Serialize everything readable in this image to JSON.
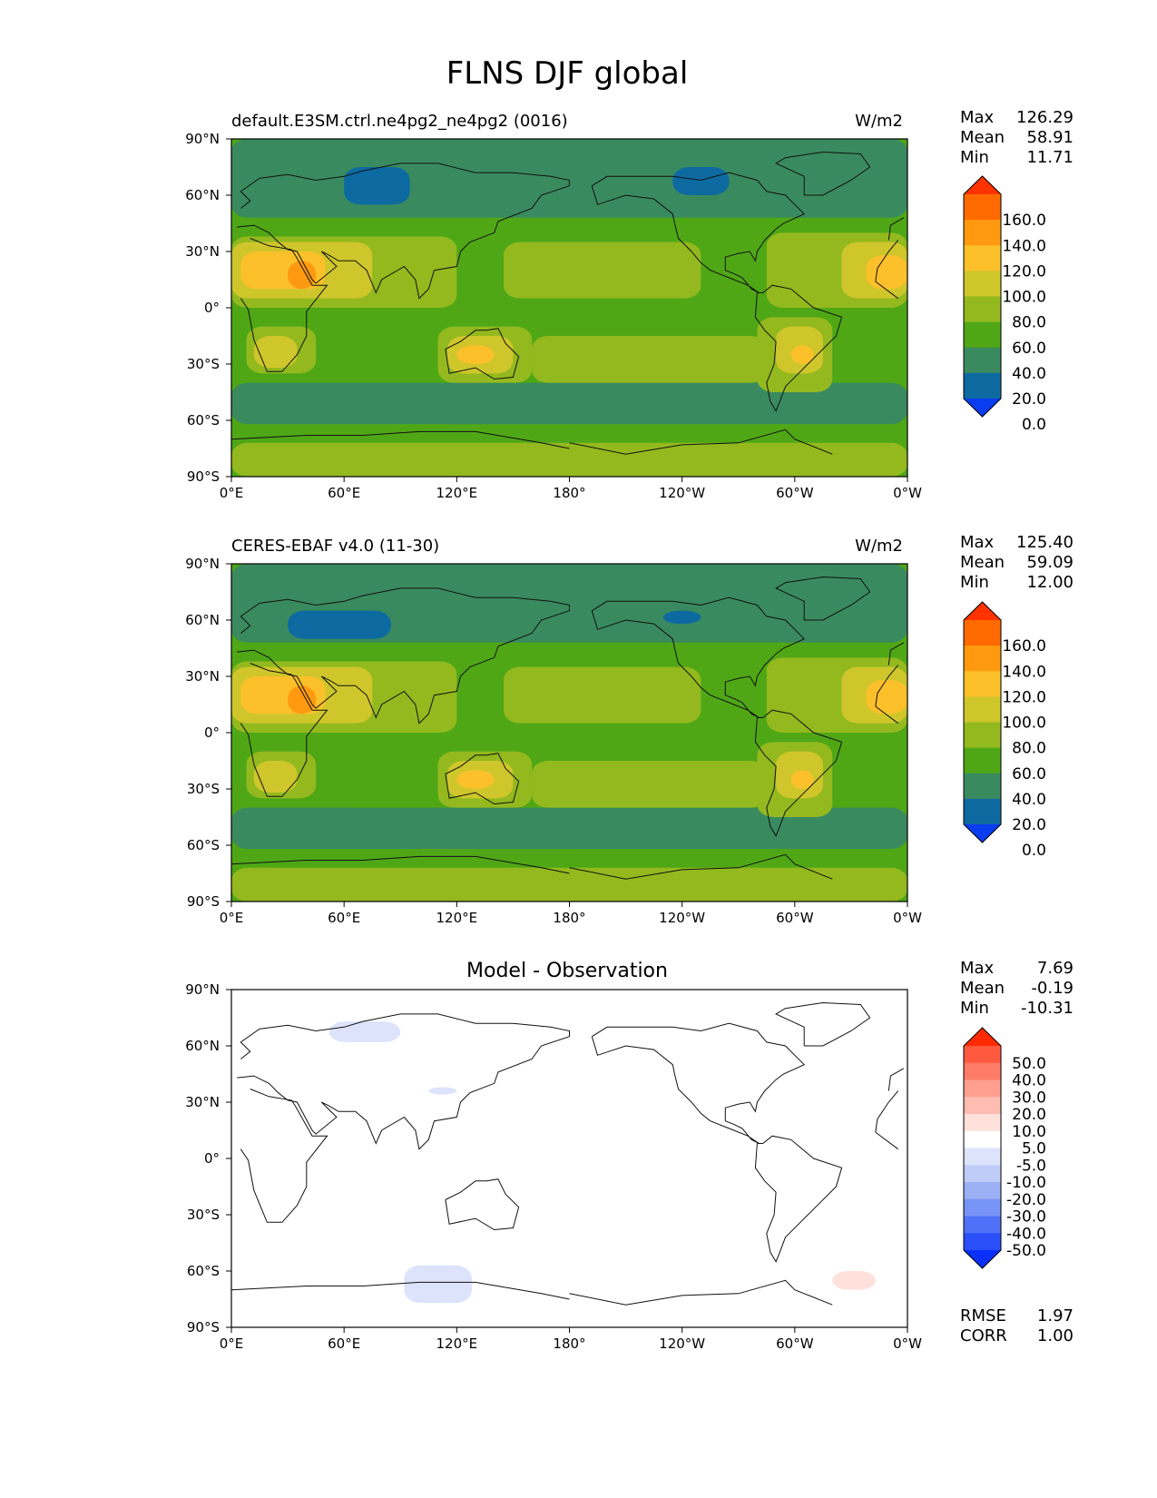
{
  "title": "FLNS DJF global",
  "panels": [
    {
      "id": "model",
      "left_label": "default.E3SM.ctrl.ne4pg2_ne4pg2 (0016)",
      "center_title": "",
      "units": "W/m2",
      "stats": [
        {
          "label": "Max",
          "value": "126.29"
        },
        {
          "label": "Mean",
          "value": "58.91"
        },
        {
          "label": "Min",
          "value": "11.71"
        }
      ]
    },
    {
      "id": "obs",
      "left_label": "CERES-EBAF v4.0 (11-30)",
      "center_title": "",
      "units": "W/m2",
      "stats": [
        {
          "label": "Max",
          "value": "125.40"
        },
        {
          "label": "Mean",
          "value": "59.09"
        },
        {
          "label": "Min",
          "value": "12.00"
        }
      ]
    },
    {
      "id": "diff",
      "left_label": "",
      "center_title": "Model - Observation",
      "units": "",
      "stats": [
        {
          "label": "Max",
          "value": "7.69"
        },
        {
          "label": "Mean",
          "value": "-0.19"
        },
        {
          "label": "Min",
          "value": "-10.31"
        }
      ],
      "extra_stats": [
        {
          "label": "RMSE",
          "value": "1.97"
        },
        {
          "label": "CORR",
          "value": "1.00"
        }
      ]
    }
  ],
  "axis": {
    "xticks": [
      "0°E",
      "60°E",
      "120°E",
      "180°",
      "120°W",
      "60°W",
      "0°W"
    ],
    "yticks": [
      "90°N",
      "60°N",
      "30°N",
      "0°",
      "30°S",
      "60°S",
      "90°S"
    ]
  },
  "colorbars": {
    "field": {
      "labels": [
        "160.0",
        "140.0",
        "120.0",
        "100.0",
        "80.0",
        "60.0",
        "40.0",
        "20.0",
        "0.0"
      ],
      "colors": [
        "#ff3300",
        "#ff6a00",
        "#ff9a10",
        "#fbc02a",
        "#cfc62c",
        "#93b91e",
        "#4fa716",
        "#3a8a5f",
        "#0d6aa0",
        "#0a3cf0"
      ]
    },
    "diff": {
      "labels": [
        "50.0",
        "40.0",
        "30.0",
        "20.0",
        "10.0",
        "5.0",
        "-5.0",
        "-10.0",
        "-20.0",
        "-30.0",
        "-40.0",
        "-50.0"
      ],
      "colors": [
        "#ff2a00",
        "#ff5a40",
        "#ff7d68",
        "#ff9f90",
        "#ffbcb0",
        "#ffe0da",
        "#ffffff",
        "#dde3fb",
        "#c0ccf8",
        "#9cb0f6",
        "#7893f6",
        "#5070f7",
        "#2a4ff8",
        "#0a30fa"
      ]
    }
  },
  "chart_data": [
    {
      "type": "heatmap",
      "title": "default.E3SM.ctrl.ne4pg2_ne4pg2 (0016)",
      "units": "W/m2",
      "xlim": [
        0,
        360
      ],
      "ylim": [
        -90,
        90
      ],
      "levels": [
        0,
        20,
        40,
        60,
        80,
        100,
        120,
        140,
        160
      ],
      "stats": {
        "max": 126.29,
        "mean": 58.91,
        "min": 11.71
      },
      "background": "#4fa716",
      "regions": [
        {
          "lon": [
            0,
            360
          ],
          "lat": [
            -90,
            -72
          ],
          "color": "#93b91e"
        },
        {
          "lon": [
            0,
            360
          ],
          "lat": [
            -62,
            -40
          ],
          "color": "#3a8a5f"
        },
        {
          "lon": [
            110,
            190
          ],
          "lat": [
            -62,
            -45
          ],
          "color": "#3a8a5f"
        },
        {
          "lon": [
            0,
            360
          ],
          "lat": [
            48,
            90
          ],
          "color": "#3a8a5f"
        },
        {
          "lon": [
            60,
            95
          ],
          "lat": [
            55,
            75
          ],
          "color": "#0d6aa0"
        },
        {
          "lon": [
            235,
            265
          ],
          "lat": [
            60,
            75
          ],
          "color": "#0d6aa0"
        },
        {
          "lon": [
            0,
            120
          ],
          "lat": [
            0,
            38
          ],
          "color": "#93b91e"
        },
        {
          "lon": [
            0,
            75
          ],
          "lat": [
            5,
            35
          ],
          "color": "#cfc62c"
        },
        {
          "lon": [
            5,
            50
          ],
          "lat": [
            10,
            30
          ],
          "color": "#fbc02a"
        },
        {
          "lon": [
            30,
            45
          ],
          "lat": [
            10,
            25
          ],
          "color": "#ff9a10"
        },
        {
          "lon": [
            145,
            250
          ],
          "lat": [
            5,
            35
          ],
          "color": "#93b91e"
        },
        {
          "lon": [
            285,
            360
          ],
          "lat": [
            0,
            40
          ],
          "color": "#93b91e"
        },
        {
          "lon": [
            325,
            360
          ],
          "lat": [
            5,
            35
          ],
          "color": "#cfc62c"
        },
        {
          "lon": [
            338,
            360
          ],
          "lat": [
            10,
            28
          ],
          "color": "#fbc02a"
        },
        {
          "lon": [
            8,
            45
          ],
          "lat": [
            -35,
            -10
          ],
          "color": "#93b91e"
        },
        {
          "lon": [
            12,
            35
          ],
          "lat": [
            -32,
            -15
          ],
          "color": "#cfc62c"
        },
        {
          "lon": [
            110,
            160
          ],
          "lat": [
            -40,
            -10
          ],
          "color": "#93b91e"
        },
        {
          "lon": [
            115,
            150
          ],
          "lat": [
            -35,
            -15
          ],
          "color": "#cfc62c"
        },
        {
          "lon": [
            120,
            140
          ],
          "lat": [
            -30,
            -20
          ],
          "color": "#fbc02a"
        },
        {
          "lon": [
            280,
            320
          ],
          "lat": [
            -45,
            -5
          ],
          "color": "#93b91e"
        },
        {
          "lon": [
            290,
            315
          ],
          "lat": [
            -35,
            -10
          ],
          "color": "#cfc62c"
        },
        {
          "lon": [
            298,
            310
          ],
          "lat": [
            -30,
            -20
          ],
          "color": "#fbc02a"
        },
        {
          "lon": [
            160,
            285
          ],
          "lat": [
            -40,
            -15
          ],
          "color": "#93b91e"
        }
      ]
    },
    {
      "type": "heatmap",
      "title": "CERES-EBAF v4.0 (11-30)",
      "units": "W/m2",
      "xlim": [
        0,
        360
      ],
      "ylim": [
        -90,
        90
      ],
      "levels": [
        0,
        20,
        40,
        60,
        80,
        100,
        120,
        140,
        160
      ],
      "stats": {
        "max": 125.4,
        "mean": 59.09,
        "min": 12.0
      },
      "background": "#4fa716",
      "regions": [
        {
          "lon": [
            0,
            360
          ],
          "lat": [
            -90,
            -72
          ],
          "color": "#93b91e"
        },
        {
          "lon": [
            0,
            360
          ],
          "lat": [
            -62,
            -40
          ],
          "color": "#3a8a5f"
        },
        {
          "lon": [
            110,
            190
          ],
          "lat": [
            -62,
            -45
          ],
          "color": "#3a8a5f"
        },
        {
          "lon": [
            0,
            360
          ],
          "lat": [
            48,
            90
          ],
          "color": "#3a8a5f"
        },
        {
          "lon": [
            30,
            85
          ],
          "lat": [
            50,
            65
          ],
          "color": "#0d6aa0"
        },
        {
          "lon": [
            230,
            250
          ],
          "lat": [
            58,
            65
          ],
          "color": "#0d6aa0"
        },
        {
          "lon": [
            0,
            120
          ],
          "lat": [
            0,
            38
          ],
          "color": "#93b91e"
        },
        {
          "lon": [
            0,
            75
          ],
          "lat": [
            5,
            35
          ],
          "color": "#cfc62c"
        },
        {
          "lon": [
            5,
            50
          ],
          "lat": [
            10,
            30
          ],
          "color": "#fbc02a"
        },
        {
          "lon": [
            30,
            45
          ],
          "lat": [
            10,
            25
          ],
          "color": "#ff9a10"
        },
        {
          "lon": [
            145,
            250
          ],
          "lat": [
            5,
            35
          ],
          "color": "#93b91e"
        },
        {
          "lon": [
            285,
            360
          ],
          "lat": [
            0,
            40
          ],
          "color": "#93b91e"
        },
        {
          "lon": [
            325,
            360
          ],
          "lat": [
            5,
            35
          ],
          "color": "#cfc62c"
        },
        {
          "lon": [
            338,
            360
          ],
          "lat": [
            10,
            28
          ],
          "color": "#fbc02a"
        },
        {
          "lon": [
            8,
            45
          ],
          "lat": [
            -35,
            -10
          ],
          "color": "#93b91e"
        },
        {
          "lon": [
            12,
            35
          ],
          "lat": [
            -32,
            -15
          ],
          "color": "#cfc62c"
        },
        {
          "lon": [
            110,
            160
          ],
          "lat": [
            -40,
            -10
          ],
          "color": "#93b91e"
        },
        {
          "lon": [
            115,
            150
          ],
          "lat": [
            -35,
            -15
          ],
          "color": "#cfc62c"
        },
        {
          "lon": [
            120,
            140
          ],
          "lat": [
            -30,
            -20
          ],
          "color": "#fbc02a"
        },
        {
          "lon": [
            280,
            320
          ],
          "lat": [
            -45,
            -5
          ],
          "color": "#93b91e"
        },
        {
          "lon": [
            290,
            315
          ],
          "lat": [
            -35,
            -10
          ],
          "color": "#cfc62c"
        },
        {
          "lon": [
            298,
            310
          ],
          "lat": [
            -30,
            -20
          ],
          "color": "#fbc02a"
        },
        {
          "lon": [
            160,
            285
          ],
          "lat": [
            -40,
            -15
          ],
          "color": "#93b91e"
        }
      ]
    },
    {
      "type": "heatmap",
      "title": "Model - Observation",
      "xlim": [
        0,
        360
      ],
      "ylim": [
        -90,
        90
      ],
      "levels": [
        -50,
        -40,
        -30,
        -20,
        -10,
        -5,
        5,
        10,
        20,
        30,
        40,
        50
      ],
      "stats": {
        "max": 7.69,
        "mean": -0.19,
        "min": -10.31,
        "rmse": 1.97,
        "corr": 1.0
      },
      "background": "#ffffff",
      "regions": [
        {
          "lon": [
            52,
            90
          ],
          "lat": [
            62,
            73
          ],
          "color": "#dde3fb"
        },
        {
          "lon": [
            105,
            120
          ],
          "lat": [
            34,
            38
          ],
          "color": "#dde3fb"
        },
        {
          "lon": [
            92,
            128
          ],
          "lat": [
            -77,
            -57
          ],
          "color": "#dde3fb"
        },
        {
          "lon": [
            320,
            343
          ],
          "lat": [
            -70,
            -60
          ],
          "color": "#ffe0da"
        }
      ]
    }
  ]
}
